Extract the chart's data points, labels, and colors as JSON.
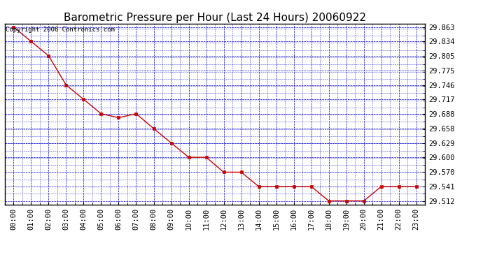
{
  "title": "Barometric Pressure per Hour (Last 24 Hours) 20060922",
  "copyright": "Copyright 2006 Contronics.com",
  "x_labels": [
    "00:00",
    "01:00",
    "02:00",
    "03:00",
    "04:00",
    "05:00",
    "06:00",
    "07:00",
    "08:00",
    "09:00",
    "10:00",
    "11:00",
    "12:00",
    "13:00",
    "14:00",
    "15:00",
    "16:00",
    "17:00",
    "18:00",
    "19:00",
    "20:00",
    "21:00",
    "22:00",
    "23:00"
  ],
  "y_values": [
    29.863,
    29.834,
    29.805,
    29.746,
    29.717,
    29.688,
    29.68,
    29.688,
    29.658,
    29.629,
    29.6,
    29.6,
    29.57,
    29.57,
    29.541,
    29.541,
    29.541,
    29.541,
    29.512,
    29.512,
    29.512,
    29.541,
    29.541,
    29.541
  ],
  "ylim_min": 29.512,
  "ylim_max": 29.863,
  "yticks": [
    29.512,
    29.541,
    29.57,
    29.6,
    29.629,
    29.658,
    29.688,
    29.717,
    29.746,
    29.775,
    29.805,
    29.834,
    29.863
  ],
  "line_color": "#cc0000",
  "marker_color": "#cc0000",
  "grid_color": "#0000cc",
  "bg_color": "#ffffff",
  "plot_bg_color": "#ffffff",
  "title_color": "#000000",
  "border_color": "#000000",
  "title_fontsize": 11,
  "tick_fontsize": 7.5,
  "copyright_fontsize": 6.5
}
